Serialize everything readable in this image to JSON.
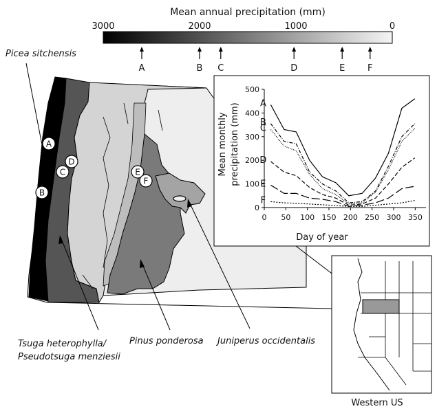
{
  "colorbar": {
    "title": "Mean annual precipitation (mm)",
    "ticks": [
      {
        "value": 3000,
        "label": "3000"
      },
      {
        "value": 2000,
        "label": "2000"
      },
      {
        "value": 1000,
        "label": "1000"
      },
      {
        "value": 0,
        "label": "0"
      }
    ],
    "range": [
      3000,
      0
    ],
    "gradient": [
      "#000000",
      "#f5f5f5"
    ],
    "sites": [
      {
        "label": "A",
        "value": 2600
      },
      {
        "label": "B",
        "value": 2000
      },
      {
        "label": "C",
        "value": 1780
      },
      {
        "label": "D",
        "value": 1020
      },
      {
        "label": "E",
        "value": 520
      },
      {
        "label": "F",
        "value": 230
      }
    ]
  },
  "species": {
    "picea": "Picea sitchensis",
    "tsuga_line1": "Tsuga heterophylla/",
    "tsuga_line2": "Pseudotsuga menziesii",
    "pinus": "Pinus ponderosa",
    "juniperus": "Juniperus occidentalis"
  },
  "map_markers": [
    "A",
    "B",
    "C",
    "D",
    "E",
    "F"
  ],
  "inset_map": {
    "caption": "Western US",
    "highlight_color": "#999999"
  },
  "chart_data": {
    "type": "line",
    "xlabel": "Day of year",
    "ylabel_line1": "Mean monthly",
    "ylabel_line2": "precipitation (mm)",
    "xlim": [
      0,
      375
    ],
    "ylim": [
      0,
      500
    ],
    "xticks": [
      0,
      50,
      100,
      150,
      200,
      250,
      300,
      350
    ],
    "yticks": [
      0,
      100,
      200,
      300,
      400,
      500
    ],
    "x": [
      15,
      46,
      74,
      105,
      135,
      166,
      196,
      227,
      258,
      288,
      319,
      349
    ],
    "series": [
      {
        "name": "A",
        "dash": "",
        "values": [
          435,
          330,
          320,
          200,
          130,
          105,
          50,
          60,
          125,
          230,
          420,
          460
        ]
      },
      {
        "name": "B",
        "dash": "5 2 1 2",
        "values": [
          355,
          280,
          270,
          150,
          100,
          70,
          20,
          25,
          70,
          175,
          300,
          355
        ]
      },
      {
        "name": "C",
        "dash": "1 1.5",
        "values": [
          330,
          260,
          240,
          140,
          80,
          55,
          15,
          20,
          65,
          160,
          280,
          335
        ]
      },
      {
        "name": "D",
        "dash": "6 3",
        "values": [
          195,
          150,
          135,
          85,
          55,
          40,
          10,
          15,
          40,
          100,
          170,
          210
        ]
      },
      {
        "name": "E",
        "dash": "12 4",
        "values": [
          95,
          60,
          60,
          40,
          35,
          25,
          5,
          10,
          20,
          40,
          80,
          90
        ]
      },
      {
        "name": "F",
        "dash": "2 2",
        "values": [
          25,
          20,
          18,
          15,
          12,
          8,
          5,
          5,
          10,
          15,
          20,
          30
        ]
      }
    ]
  }
}
